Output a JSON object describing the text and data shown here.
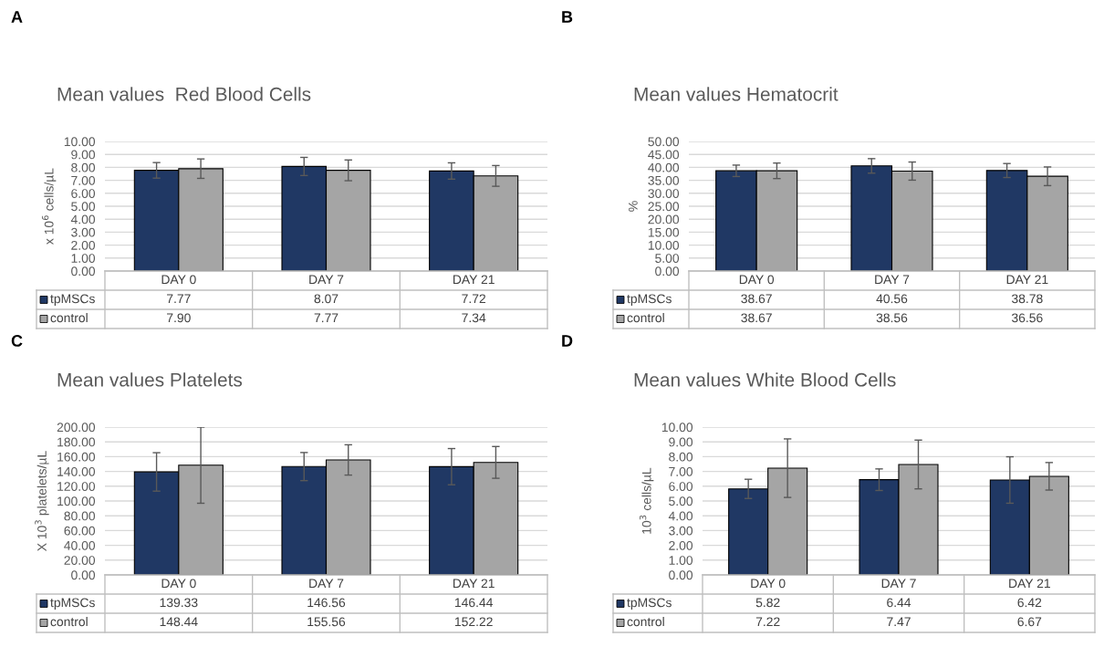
{
  "chart_data": [
    {
      "type": "bar",
      "title": "Mean values  Red Blood Cells",
      "ylabel": "x 10$^{6}$ cells/µL",
      "annotations": [
        "A"
      ],
      "categories": [
        "DAY 0",
        "DAY 7",
        "DAY 21"
      ],
      "series": [
        {
          "name": "tpMSCs",
          "color": "#203864",
          "values": [
            7.77,
            8.07,
            7.72
          ],
          "value_labels": [
            "7.77",
            "8.07",
            "7.72"
          ],
          "errors": [
            0.6,
            0.7,
            0.63
          ]
        },
        {
          "name": "control",
          "color": "#a5a5a5",
          "values": [
            7.9,
            7.77,
            7.34
          ],
          "value_labels": [
            "7.90",
            "7.77",
            "7.34"
          ],
          "errors": [
            0.75,
            0.8,
            0.8
          ]
        }
      ],
      "ylim": [
        0,
        10
      ],
      "yticks": [
        {
          "value": 0,
          "label": "0.00"
        },
        {
          "value": 1,
          "label": "1.00"
        },
        {
          "value": 2,
          "label": "2.00"
        },
        {
          "value": 3,
          "label": "3.00"
        },
        {
          "value": 4,
          "label": "4.00"
        },
        {
          "value": 5,
          "label": "5.00"
        },
        {
          "value": 6,
          "label": "6.00"
        },
        {
          "value": 7,
          "label": "7.00"
        },
        {
          "value": 8,
          "label": "8.00"
        },
        {
          "value": 9,
          "label": "9.00"
        },
        {
          "value": 10,
          "label": "10.00"
        }
      ],
      "grid": "y",
      "legend": "bottom"
    },
    {
      "type": "bar",
      "title": "Mean values Hematocrit",
      "ylabel": "%",
      "annotations": [
        "B"
      ],
      "categories": [
        "DAY 0",
        "DAY 7",
        "DAY 21"
      ],
      "series": [
        {
          "name": "tpMSCs",
          "color": "#203864",
          "values": [
            38.67,
            40.56,
            38.78
          ],
          "value_labels": [
            "38.67",
            "40.56",
            "38.78"
          ],
          "errors": [
            2.2,
            2.8,
            2.7
          ]
        },
        {
          "name": "control",
          "color": "#a5a5a5",
          "values": [
            38.67,
            38.56,
            36.56
          ],
          "value_labels": [
            "38.67",
            "38.56",
            "36.56"
          ],
          "errors": [
            3.0,
            3.5,
            3.6
          ]
        }
      ],
      "ylim": [
        0,
        50
      ],
      "yticks": [
        {
          "value": 0,
          "label": "0.00"
        },
        {
          "value": 5,
          "label": "5.00"
        },
        {
          "value": 10,
          "label": "10.00"
        },
        {
          "value": 15,
          "label": "15.00"
        },
        {
          "value": 20,
          "label": "20.00"
        },
        {
          "value": 25,
          "label": "25.00"
        },
        {
          "value": 30,
          "label": "30.00"
        },
        {
          "value": 35,
          "label": "35.00"
        },
        {
          "value": 40,
          "label": "40.00"
        },
        {
          "value": 45,
          "label": "45.00"
        },
        {
          "value": 50,
          "label": "50.00"
        }
      ],
      "grid": "y",
      "legend": "bottom"
    },
    {
      "type": "bar",
      "title": "Mean values Platelets",
      "ylabel": "X 10$^{3}$ platelets/µL",
      "annotations": [
        "C"
      ],
      "categories": [
        "DAY 0",
        "DAY 7",
        "DAY 21"
      ],
      "series": [
        {
          "name": "tpMSCs",
          "color": "#203864",
          "values": [
            139.33,
            146.56,
            146.44
          ],
          "value_labels": [
            "139.33",
            "146.56",
            "146.44"
          ],
          "errors": [
            26,
            19,
            24.5
          ]
        },
        {
          "name": "control",
          "color": "#a5a5a5",
          "values": [
            148.44,
            155.56,
            152.22
          ],
          "value_labels": [
            "148.44",
            "155.56",
            "152.22"
          ],
          "errors": [
            51.5,
            20.5,
            21.5
          ]
        }
      ],
      "ylim": [
        0,
        200
      ],
      "yticks": [
        {
          "value": 0,
          "label": "0.00"
        },
        {
          "value": 20,
          "label": "20.00"
        },
        {
          "value": 40,
          "label": "40.00"
        },
        {
          "value": 60,
          "label": "60.00"
        },
        {
          "value": 80,
          "label": "80.00"
        },
        {
          "value": 100,
          "label": "100.00"
        },
        {
          "value": 120,
          "label": "120.00"
        },
        {
          "value": 140,
          "label": "140.00"
        },
        {
          "value": 160,
          "label": "160.00"
        },
        {
          "value": 180,
          "label": "180.00"
        },
        {
          "value": 200,
          "label": "200.00"
        }
      ],
      "grid": "y",
      "legend": "bottom"
    },
    {
      "type": "bar",
      "title": "Mean values White Blood Cells",
      "ylabel": "10$^{3}$ cells/µL",
      "annotations": [
        "D"
      ],
      "categories": [
        "DAY 0",
        "DAY 7",
        "DAY 21"
      ],
      "series": [
        {
          "name": "tpMSCs",
          "color": "#203864",
          "values": [
            5.82,
            6.44,
            6.42
          ],
          "value_labels": [
            "5.82",
            "6.44",
            "6.42"
          ],
          "errors": [
            0.65,
            0.73,
            1.57
          ]
        },
        {
          "name": "control",
          "color": "#a5a5a5",
          "values": [
            7.22,
            7.47,
            6.67
          ],
          "value_labels": [
            "7.22",
            "7.47",
            "6.67"
          ],
          "errors": [
            1.98,
            1.65,
            0.93
          ]
        }
      ],
      "ylim": [
        0,
        10
      ],
      "yticks": [
        {
          "value": 0,
          "label": "0.00"
        },
        {
          "value": 1,
          "label": "1.00"
        },
        {
          "value": 2,
          "label": "2.00"
        },
        {
          "value": 3,
          "label": "3.00"
        },
        {
          "value": 4,
          "label": "4.00"
        },
        {
          "value": 5,
          "label": "5.00"
        },
        {
          "value": 6,
          "label": "6.00"
        },
        {
          "value": 7,
          "label": "7.00"
        },
        {
          "value": 8,
          "label": "8.00"
        },
        {
          "value": 9,
          "label": "9.00"
        },
        {
          "value": 10,
          "label": "10.00"
        }
      ],
      "grid": "y",
      "legend": "bottom"
    }
  ]
}
